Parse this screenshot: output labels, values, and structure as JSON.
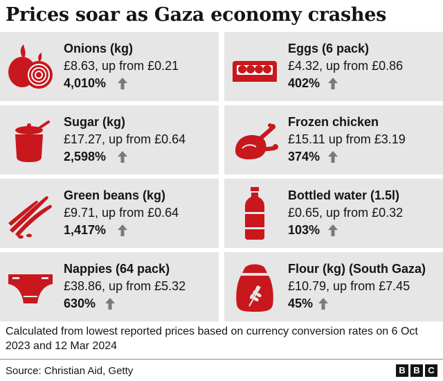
{
  "title": "Prices soar as Gaza economy crashes",
  "accent_color": "#c8171d",
  "items": [
    {
      "name": "Onions (kg)",
      "price": "£8.63, up from £0.21",
      "pct": "4,010%",
      "icon": "onion-icon"
    },
    {
      "name": "Eggs (6 pack)",
      "price": "£4.32, up from £0.86",
      "pct": "402%",
      "icon": "eggs-icon"
    },
    {
      "name": "Sugar (kg)",
      "price": "£17.27, up from £0.64",
      "pct": "2,598%",
      "icon": "sugar-pot-icon"
    },
    {
      "name": "Frozen chicken",
      "price": "£15.11 up from £3.19",
      "pct": "374%",
      "icon": "chicken-icon"
    },
    {
      "name": "Green beans (kg)",
      "price": "£9.71, up from £0.64",
      "pct": "1,417%",
      "icon": "green-beans-icon"
    },
    {
      "name": "Bottled water (1.5l)",
      "price": "£0.65, up from £0.32",
      "pct": "103%",
      "icon": "water-bottle-icon"
    },
    {
      "name": "Nappies (64 pack)",
      "price": "£38.86, up from £5.32",
      "pct": "630%",
      "icon": "nappy-icon"
    },
    {
      "name": "Flour (kg) (South Gaza)",
      "price": "£10.79, up from £7.45",
      "pct": "45%",
      "icon": "flour-sack-icon"
    }
  ],
  "note": "Calculated from lowest reported prices based on currency conversion rates on 6 Oct 2023 and 12 Mar 2024",
  "source": "Source: Christian Aid, Getty",
  "logo": [
    "B",
    "B",
    "C"
  ]
}
